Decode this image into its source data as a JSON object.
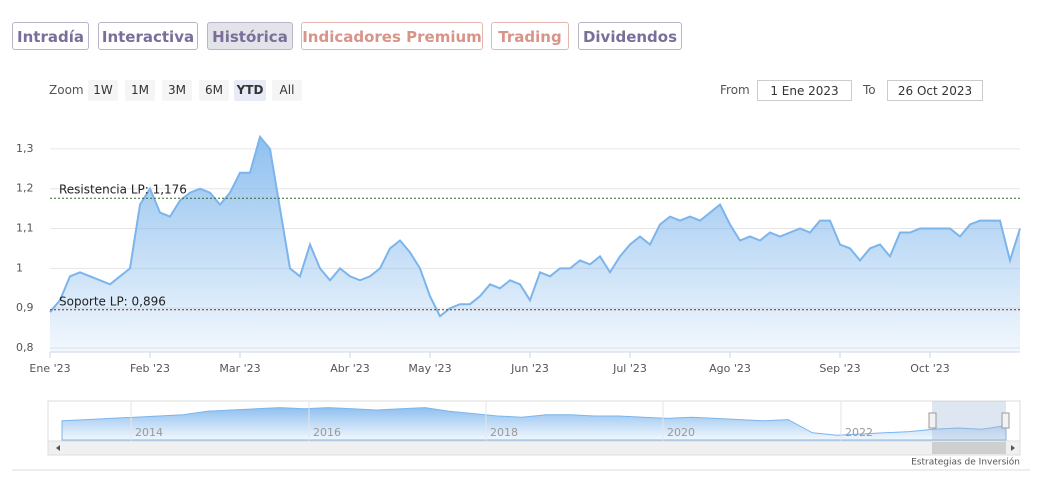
{
  "tabs": [
    "Intradía",
    "Interactiva",
    "Histórica",
    "Indicadores Premium",
    "Trading",
    "Dividendos"
  ],
  "zoom": {
    "label": "Zoom",
    "buttons": [
      "1W",
      "1M",
      "3M",
      "6M",
      "YTD",
      "All"
    ]
  },
  "range": {
    "from_label": "From",
    "from": "1 Ene 2023",
    "to_label": "To",
    "to": "26 Oct 2023"
  },
  "credit": "Estrategias de Inversión",
  "chart_data": {
    "type": "area",
    "categories": [
      "Ene '23",
      null,
      null,
      null,
      null,
      null,
      null,
      null,
      null,
      null,
      "Feb '23",
      null,
      null,
      null,
      null,
      null,
      null,
      null,
      null,
      "Mar '23",
      null,
      null,
      null,
      null,
      null,
      null,
      null,
      null,
      null,
      null,
      "Abr '23",
      null,
      null,
      null,
      null,
      null,
      null,
      null,
      "May '23",
      null,
      null,
      null,
      null,
      null,
      null,
      null,
      null,
      null,
      "Jun '23",
      null,
      null,
      null,
      null,
      null,
      null,
      null,
      null,
      null,
      "Jul '23",
      null,
      null,
      null,
      null,
      null,
      null,
      null,
      null,
      null,
      "Ago '23",
      null,
      null,
      null,
      null,
      null,
      null,
      null,
      null,
      null,
      null,
      "Sep '23",
      null,
      null,
      null,
      null,
      null,
      null,
      null,
      null,
      "Oct '23",
      null,
      null,
      null,
      null,
      null,
      null,
      null,
      null,
      null
    ],
    "values": [
      0.89,
      0.92,
      0.98,
      0.99,
      0.98,
      0.97,
      0.96,
      0.98,
      1.0,
      1.16,
      1.2,
      1.14,
      1.13,
      1.17,
      1.19,
      1.2,
      1.19,
      1.16,
      1.19,
      1.24,
      1.24,
      1.33,
      1.3,
      1.15,
      1.0,
      0.98,
      1.06,
      1.0,
      0.97,
      1.0,
      0.98,
      0.97,
      0.98,
      1.0,
      1.05,
      1.07,
      1.04,
      1.0,
      0.93,
      0.88,
      0.9,
      0.91,
      0.91,
      0.93,
      0.96,
      0.95,
      0.97,
      0.96,
      0.92,
      0.99,
      0.98,
      1.0,
      1.0,
      1.02,
      1.01,
      1.03,
      0.99,
      1.03,
      1.06,
      1.08,
      1.06,
      1.11,
      1.13,
      1.12,
      1.13,
      1.12,
      1.14,
      1.16,
      1.11,
      1.07,
      1.08,
      1.07,
      1.09,
      1.08,
      1.09,
      1.1,
      1.09,
      1.12,
      1.12,
      1.06,
      1.05,
      1.02,
      1.05,
      1.06,
      1.03,
      1.09,
      1.09,
      1.1,
      1.1,
      1.1,
      1.1,
      1.08,
      1.11,
      1.12,
      1.12,
      1.12,
      1.02,
      1.1
    ],
    "color": "#7cb5ec",
    "ylim": [
      0.79,
      1.385
    ],
    "yticks": [
      {
        "value": 0.8,
        "label": "0,8"
      },
      {
        "value": 0.9,
        "label": "0,9"
      },
      1,
      {
        "value": 1.1,
        "label": "1,1"
      },
      {
        "value": 1.2,
        "label": "1,2"
      },
      {
        "value": 1.3,
        "label": "1,3"
      }
    ],
    "grid": true,
    "annotations": [
      {
        "label": "Resistencia LP: 1,176",
        "value": 1.176,
        "color": "#2e6b2e"
      },
      {
        "label": "Soporte LP: 0,896",
        "value": 0.896,
        "color": "#8b2020"
      }
    ],
    "navigator": {
      "labels": [
        "2014",
        "2016",
        "2018",
        "2020",
        "2022"
      ],
      "ylim": [
        0.5,
        2.0
      ],
      "values": [
        1.3,
        1.35,
        1.4,
        1.45,
        1.5,
        1.55,
        1.7,
        1.75,
        1.8,
        1.85,
        1.8,
        1.85,
        1.8,
        1.75,
        1.8,
        1.85,
        1.7,
        1.6,
        1.5,
        1.45,
        1.55,
        1.55,
        1.5,
        1.5,
        1.45,
        1.4,
        1.45,
        1.4,
        1.35,
        1.3,
        1.35,
        0.8,
        0.7,
        0.75,
        0.8,
        0.85,
        0.95,
        1.0,
        0.95,
        1.1
      ]
    }
  }
}
